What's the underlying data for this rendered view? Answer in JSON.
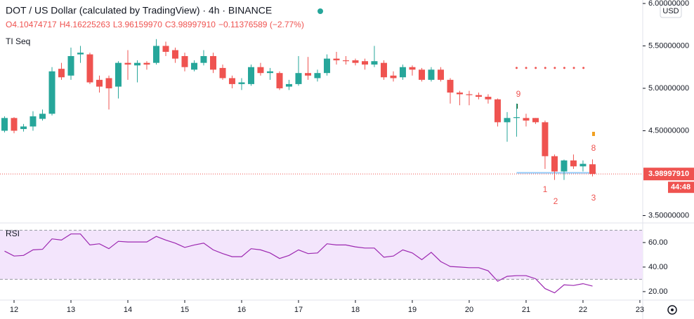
{
  "chart_data": {
    "type": "candlestick",
    "title": "DOT / US Dollar (calculated by TradingView) · 4h · BINANCE",
    "legend_values": [
      "O4.10474717",
      "H4.16225263",
      "L3.96159970",
      "C3.98997910",
      "−0.11376589 (−2.77%)"
    ],
    "indicator_name": "TI Seq",
    "currency": "USD",
    "last_price_label": "3.98997910",
    "countdown": "44:48",
    "up_color": "#26a69a",
    "down_color": "#ef5350",
    "x": [
      11.833,
      12,
      12.167,
      12.333,
      12.5,
      12.667,
      12.833,
      13,
      13.167,
      13.333,
      13.5,
      13.667,
      13.833,
      14,
      14.167,
      14.333,
      14.5,
      14.667,
      14.833,
      15,
      15.167,
      15.333,
      15.5,
      15.667,
      15.833,
      16,
      16.167,
      16.333,
      16.5,
      16.667,
      16.833,
      17,
      17.167,
      17.333,
      17.5,
      17.667,
      17.833,
      18,
      18.167,
      18.333,
      18.5,
      18.667,
      18.833,
      19,
      19.167,
      19.333,
      19.5,
      19.667,
      19.833,
      20,
      20.167,
      20.333,
      20.5,
      20.667,
      20.833,
      21,
      21.167,
      21.333,
      21.5,
      21.667,
      21.833,
      22,
      22.167
    ],
    "open": [
      4.5,
      4.65,
      4.52,
      4.55,
      4.64,
      4.7,
      5.23,
      5.15,
      5.4,
      5.4,
      5.1,
      5.12,
      5.02,
      5.3,
      5.27,
      5.3,
      5.3,
      5.5,
      5.45,
      5.38,
      5.22,
      5.3,
      5.38,
      5.24,
      5.12,
      5.05,
      5.05,
      5.25,
      5.18,
      5.18,
      5.02,
      5.05,
      5.18,
      5.12,
      5.18,
      5.35,
      5.33,
      5.33,
      5.32,
      5.28,
      5.3,
      5.15,
      5.13,
      5.25,
      5.22,
      5.1,
      5.22,
      5.1,
      4.95,
      4.93,
      4.92,
      4.9,
      4.87,
      4.6,
      4.65,
      4.65,
      4.65,
      4.6,
      4.2,
      4.02,
      4.15,
      4.08,
      4.10474717
    ],
    "high": [
      4.67,
      4.66,
      4.58,
      4.73,
      4.75,
      5.25,
      5.3,
      5.48,
      5.5,
      5.42,
      5.15,
      5.15,
      5.32,
      5.45,
      5.33,
      5.32,
      5.58,
      5.55,
      5.48,
      5.42,
      5.33,
      5.45,
      5.42,
      5.28,
      5.15,
      5.12,
      5.28,
      5.3,
      5.24,
      5.2,
      5.1,
      5.38,
      5.37,
      5.22,
      5.4,
      5.43,
      5.38,
      5.35,
      5.35,
      5.5,
      5.33,
      5.2,
      5.28,
      5.27,
      5.24,
      5.25,
      5.25,
      5.12,
      4.97,
      4.97,
      4.95,
      4.93,
      4.88,
      4.72,
      4.82,
      4.7,
      4.65,
      4.62,
      4.22,
      4.16,
      4.22,
      4.15,
      4.16225263
    ],
    "low": [
      4.48,
      4.47,
      4.49,
      4.5,
      4.62,
      4.68,
      5.1,
      5.1,
      5.3,
      5.05,
      4.95,
      4.75,
      4.88,
      5.1,
      5.07,
      5.22,
      5.28,
      5.38,
      5.3,
      5.2,
      5.2,
      5.27,
      5.18,
      5.1,
      5.0,
      4.98,
      5.03,
      5.15,
      5.1,
      4.98,
      4.98,
      5.03,
      5.1,
      5.08,
      5.15,
      5.28,
      5.28,
      5.27,
      5.22,
      5.25,
      5.1,
      5.08,
      5.1,
      5.15,
      5.08,
      5.08,
      5.08,
      4.82,
      4.8,
      4.8,
      4.87,
      4.82,
      4.55,
      4.37,
      4.43,
      4.55,
      4.58,
      4.05,
      3.92,
      3.92,
      4.05,
      4.02,
      3.9615997
    ],
    "close": [
      4.65,
      4.5,
      4.55,
      4.67,
      4.7,
      5.2,
      5.13,
      5.38,
      5.42,
      5.07,
      5.02,
      5.0,
      5.3,
      5.28,
      5.3,
      5.28,
      5.5,
      5.43,
      5.35,
      5.25,
      5.3,
      5.38,
      5.22,
      5.12,
      5.05,
      5.07,
      5.25,
      5.18,
      5.2,
      5.0,
      5.05,
      5.18,
      5.15,
      5.18,
      5.35,
      5.33,
      5.32,
      5.3,
      5.28,
      5.32,
      5.13,
      5.12,
      5.25,
      5.22,
      5.1,
      5.22,
      5.1,
      4.95,
      4.93,
      4.92,
      4.9,
      4.87,
      4.6,
      4.65,
      4.66,
      4.62,
      4.6,
      4.2,
      4.02,
      4.15,
      4.08,
      4.11,
      3.9899791
    ],
    "xlim": [
      11.753,
      23.05
    ],
    "xticks": [
      12,
      13,
      14,
      15,
      16,
      17,
      18,
      19,
      20,
      21,
      22,
      23
    ],
    "ylim": [
      3.413,
      6.041
    ],
    "yticks": [
      {
        "value": 6,
        "label": "6.00000000"
      },
      {
        "value": 5.5,
        "label": "5.50000000"
      },
      {
        "value": 5,
        "label": "5.00000000"
      },
      {
        "value": 4.5,
        "label": "4.50000000"
      },
      {
        "value": 3.5,
        "label": "3.50000000"
      }
    ],
    "resistance": 5.24,
    "resistance_color": "#ef5350",
    "td_sequential": [
      "9",
      "1",
      "2",
      "8",
      "3"
    ],
    "rsi": {
      "name": "RSI",
      "color": "#9c27b0",
      "values": [
        53,
        49,
        49.5,
        54,
        54.5,
        63,
        62,
        67,
        67,
        58,
        59,
        55,
        61,
        60.5,
        60.5,
        60.5,
        65,
        62,
        59.5,
        56,
        58,
        59.5,
        54,
        51,
        48.5,
        48.5,
        55,
        54,
        51.5,
        47,
        49.5,
        54,
        51,
        51.5,
        59,
        58,
        58,
        56.5,
        55.5,
        55.5,
        48,
        49,
        54,
        51.5,
        46,
        52,
        44.5,
        40.5,
        40,
        39.5,
        39.5,
        37,
        28.5,
        32.5,
        33,
        33,
        30.5,
        22.5,
        19,
        25.5,
        25,
        26.5,
        24.5
      ],
      "ylim": [
        13.1,
        73.1
      ],
      "yticks": [
        {
          "value": 60,
          "label": "60.00"
        },
        {
          "value": 40,
          "label": "40.00"
        },
        {
          "value": 20,
          "label": "20.00"
        }
      ],
      "band": [
        30,
        70
      ]
    }
  }
}
